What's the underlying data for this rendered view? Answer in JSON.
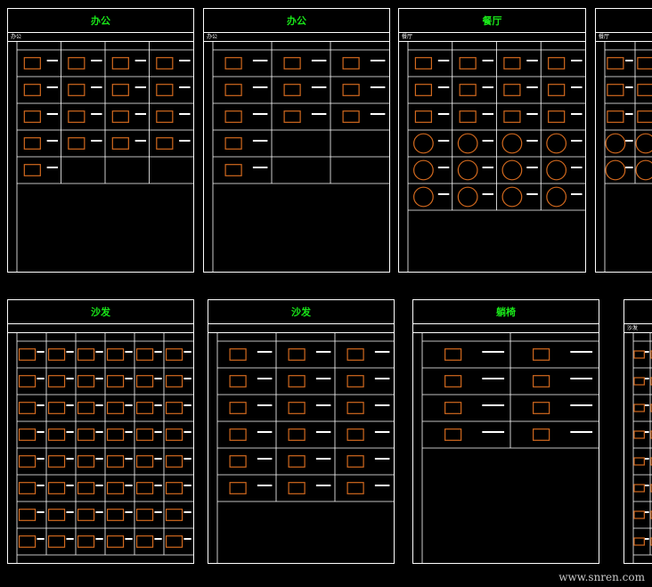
{
  "drawing": {
    "panels": [
      {
        "title": "办公",
        "section_label": "办公"
      },
      {
        "title": "办公",
        "section_label": "办公"
      },
      {
        "title": "餐厅",
        "section_label": "餐厅"
      },
      {
        "title": "",
        "section_label": "餐厅"
      },
      {
        "title": "沙发",
        "section_label": ""
      },
      {
        "title": "沙发",
        "section_label": ""
      },
      {
        "title": "躺椅",
        "section_label": ""
      },
      {
        "title": "",
        "section_label": "沙发"
      }
    ],
    "colors": {
      "background": "#000000",
      "lines": "#ffffff",
      "title": "#19e619",
      "furniture": "#d2691e",
      "accent": "#ff2020"
    }
  },
  "watermark": "www.snren.com"
}
